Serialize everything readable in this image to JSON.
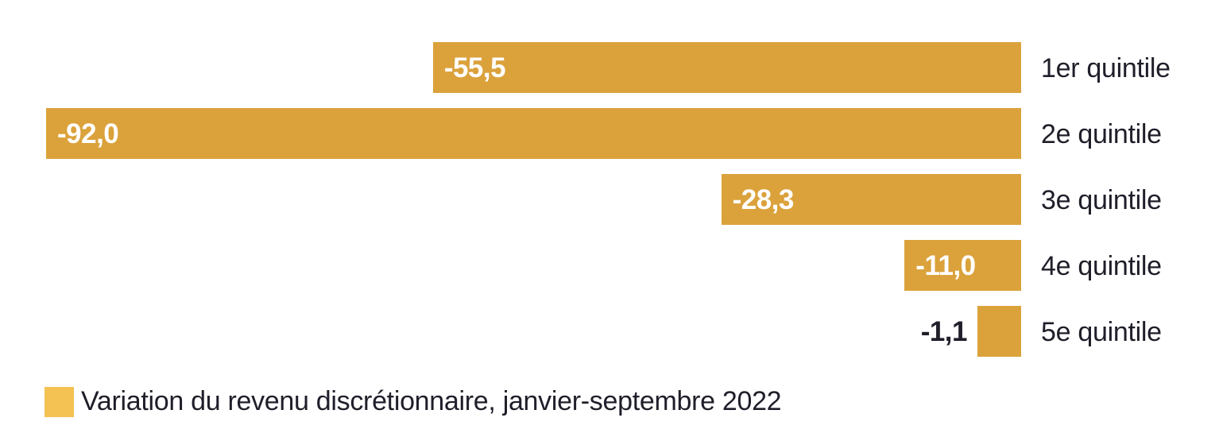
{
  "chart_data": {
    "type": "bar",
    "orientation": "horizontal",
    "title": "",
    "categories": [
      "1er quintile",
      "2e quintile",
      "3e quintile",
      "4e quintile",
      "5e quintile"
    ],
    "values": [
      -55.5,
      -92.0,
      -28.3,
      -11.0,
      -1.1
    ],
    "value_labels": [
      "-55,5",
      "-92,0",
      "-28,3",
      "-11,0",
      "-1,1"
    ],
    "series_name": "Variation du revenu discrétionnaire, janvier-septembre 2022",
    "xlim": [
      -92,
      0
    ],
    "grid": false,
    "axes_hidden": true,
    "bars_right_aligned": true,
    "legend_position": "bottom-left",
    "colors": {
      "bar": "#DBA23C",
      "legend_swatch": "#F4C253",
      "value_text_inside": "#FFFFFF",
      "value_text_outside": "#1F1E29",
      "category_label": "#1F1E29",
      "background": "#FFFFFF"
    }
  },
  "legend": {
    "label": "Variation du revenu discrétionnaire, janvier-septembre 2022"
  }
}
